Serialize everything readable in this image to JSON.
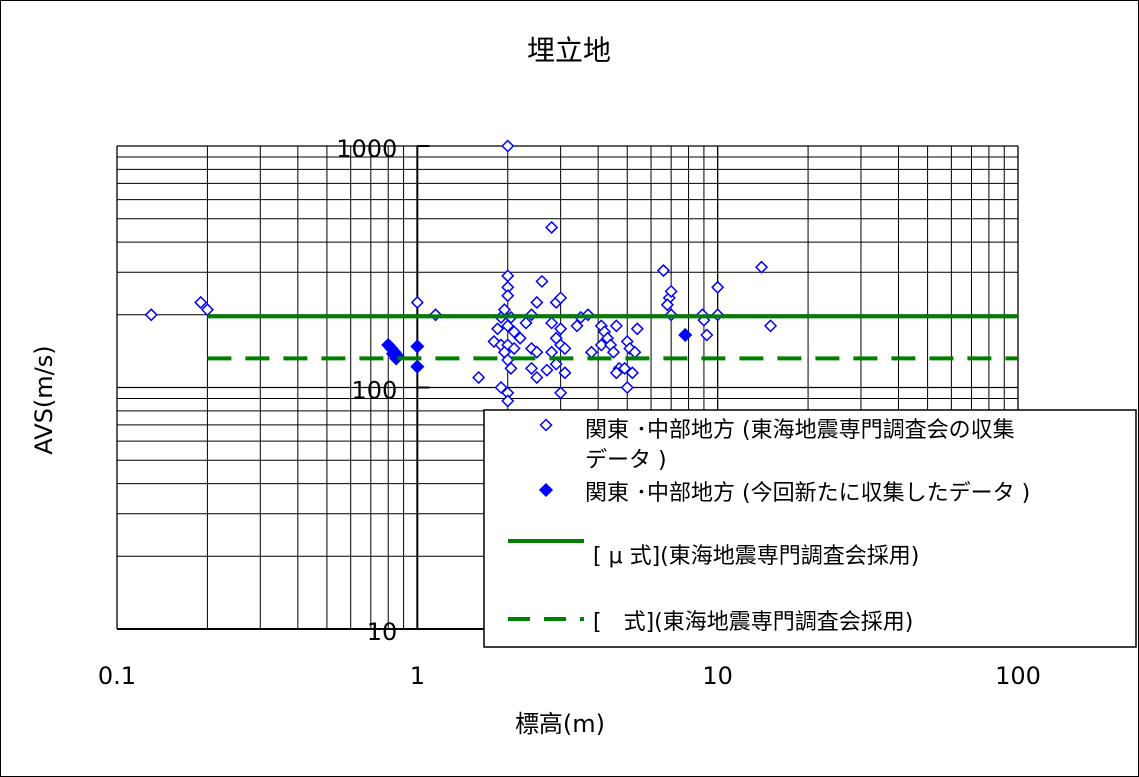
{
  "chart_data": {
    "type": "scatter",
    "title": "埋立地",
    "xlabel": "標高(m)",
    "ylabel": "AVS(m/s)",
    "x_scale": "log",
    "y_scale": "log",
    "xlim": [
      0.1,
      100
    ],
    "ylim": [
      10,
      1000
    ],
    "x_ticks": [
      0.1,
      1,
      10,
      100
    ],
    "x_tick_labels": [
      "0.1",
      "1",
      "10",
      "100"
    ],
    "y_ticks": [
      10,
      100,
      1000
    ],
    "y_tick_labels": [
      "10",
      "100",
      "1000"
    ],
    "grid": true,
    "legend_position": "bottom-right",
    "colors": {
      "points": "#0000ff",
      "lines": "#008000",
      "frame": "#000000"
    },
    "series": [
      {
        "name": "関東 ･中部地方 (東海地震専門調査会の収集データ )",
        "kind": "scatter",
        "marker": "diamond-open",
        "points": [
          [
            0.13,
            200
          ],
          [
            0.19,
            225
          ],
          [
            0.2,
            210
          ],
          [
            1.0,
            225
          ],
          [
            1.15,
            200
          ],
          [
            2.0,
            1000
          ],
          [
            2.0,
            290
          ],
          [
            2.0,
            260
          ],
          [
            2.0,
            240
          ],
          [
            1.95,
            210
          ],
          [
            1.9,
            195
          ],
          [
            2.05,
            195
          ],
          [
            1.85,
            175
          ],
          [
            2.0,
            180
          ],
          [
            2.1,
            170
          ],
          [
            1.8,
            155
          ],
          [
            1.9,
            150
          ],
          [
            2.0,
            150
          ],
          [
            2.1,
            145
          ],
          [
            1.95,
            140
          ],
          [
            2.0,
            130
          ],
          [
            2.05,
            120
          ],
          [
            1.9,
            100
          ],
          [
            2.0,
            95
          ],
          [
            2.0,
            88
          ],
          [
            1.6,
            110
          ],
          [
            2.3,
            185
          ],
          [
            2.4,
            200
          ],
          [
            2.5,
            225
          ],
          [
            2.6,
            275
          ],
          [
            2.2,
            160
          ],
          [
            2.4,
            145
          ],
          [
            2.5,
            140
          ],
          [
            2.4,
            120
          ],
          [
            2.5,
            110
          ],
          [
            2.8,
            460
          ],
          [
            2.9,
            225
          ],
          [
            3.0,
            235
          ],
          [
            2.8,
            185
          ],
          [
            3.0,
            175
          ],
          [
            2.9,
            160
          ],
          [
            3.0,
            150
          ],
          [
            2.8,
            140
          ],
          [
            3.1,
            145
          ],
          [
            2.7,
            118
          ],
          [
            2.9,
            125
          ],
          [
            3.1,
            115
          ],
          [
            3.0,
            95
          ],
          [
            3.4,
            180
          ],
          [
            3.5,
            195
          ],
          [
            3.7,
            200
          ],
          [
            3.8,
            140
          ],
          [
            4.1,
            180
          ],
          [
            4.2,
            170
          ],
          [
            4.3,
            160
          ],
          [
            4.1,
            150
          ],
          [
            4.4,
            150
          ],
          [
            4.6,
            180
          ],
          [
            4.5,
            140
          ],
          [
            4.7,
            120
          ],
          [
            4.6,
            115
          ],
          [
            4.9,
            120
          ],
          [
            5.0,
            100
          ],
          [
            5.0,
            155
          ],
          [
            5.1,
            145
          ],
          [
            5.3,
            140
          ],
          [
            5.2,
            115
          ],
          [
            5.4,
            175
          ],
          [
            6.6,
            305
          ],
          [
            6.9,
            235
          ],
          [
            7.0,
            250
          ],
          [
            6.8,
            220
          ],
          [
            7.0,
            200
          ],
          [
            8.9,
            200
          ],
          [
            9.0,
            190
          ],
          [
            9.2,
            165
          ],
          [
            10.0,
            260
          ],
          [
            10.0,
            200
          ],
          [
            14.0,
            315
          ],
          [
            15.0,
            180
          ]
        ]
      },
      {
        "name": "関東 ･中部地方 (今回新たに収集したデータ )",
        "kind": "scatter",
        "marker": "diamond-filled",
        "points": [
          [
            0.8,
            150
          ],
          [
            0.82,
            145
          ],
          [
            0.84,
            140
          ],
          [
            0.86,
            135
          ],
          [
            0.85,
            132
          ],
          [
            0.83,
            138
          ],
          [
            1.0,
            148
          ],
          [
            1.0,
            122
          ],
          [
            7.8,
            165
          ]
        ]
      },
      {
        "name": "[ μ 式](東海地震専門調査会採用)",
        "kind": "line",
        "style": "solid",
        "points": [
          [
            0.2,
            197
          ],
          [
            100,
            197
          ]
        ]
      },
      {
        "name": "[　式](東海地震専門調査会採用)",
        "kind": "line",
        "style": "dashed",
        "points": [
          [
            0.2,
            132
          ],
          [
            100,
            132
          ]
        ]
      }
    ]
  }
}
